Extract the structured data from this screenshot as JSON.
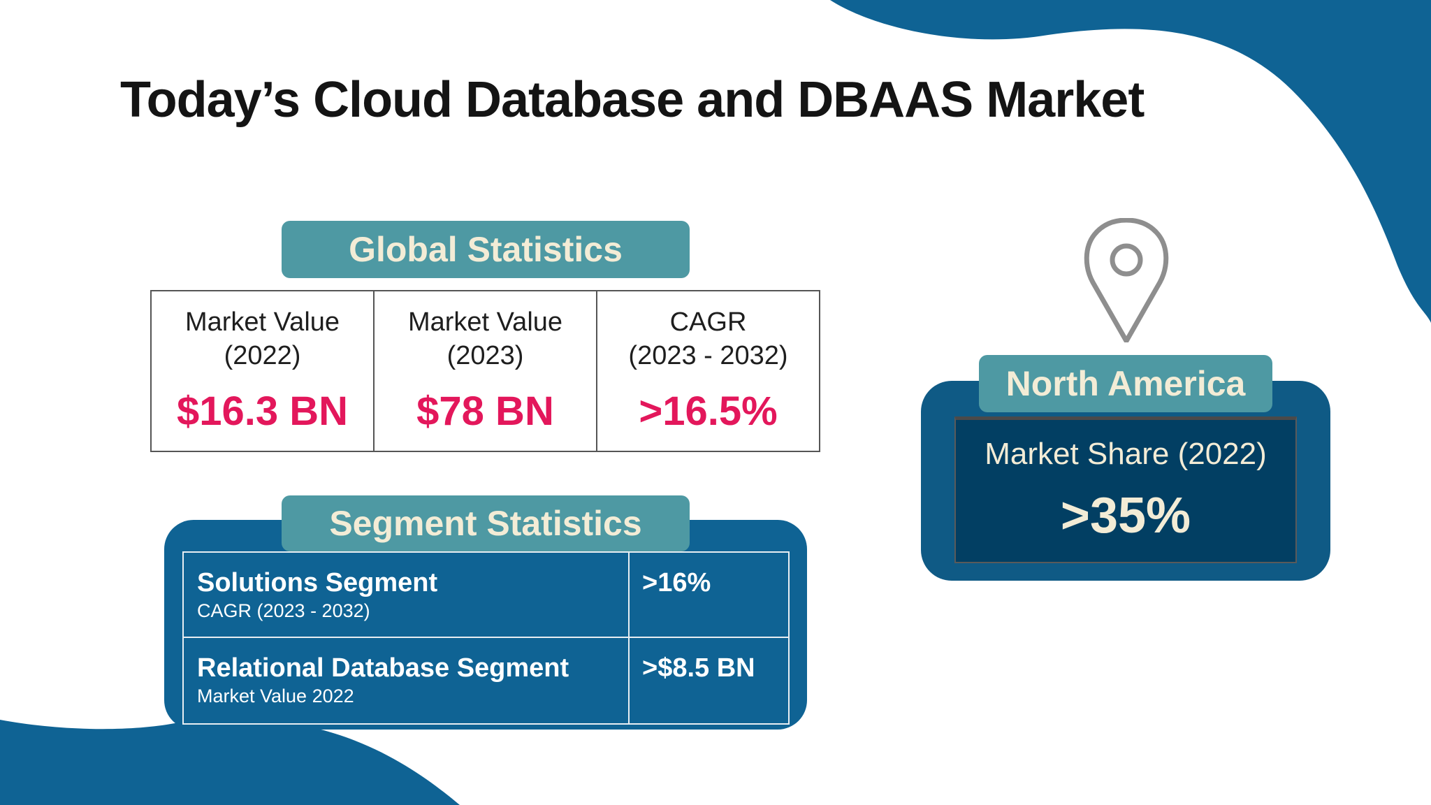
{
  "title": "Today’s Cloud Database and DBAAS Market",
  "colors": {
    "accent_blue": "#0f6394",
    "teal_pill": "#4e99a3",
    "value_pink": "#e3175b",
    "cream_text": "#f3ecd6"
  },
  "global": {
    "heading": "Global Statistics",
    "cells": [
      {
        "label_line1": "Market Value",
        "label_line2": "(2022)",
        "value": "$16.3 BN"
      },
      {
        "label_line1": "Market Value",
        "label_line2": "(2023)",
        "value": "$78 BN"
      },
      {
        "label_line1": "CAGR",
        "label_line2": "(2023 - 2032)",
        "value": ">16.5%"
      }
    ]
  },
  "segment": {
    "heading": "Segment Statistics",
    "rows": [
      {
        "name": "Solutions Segment",
        "sub": "CAGR (2023 - 2032)",
        "value": ">16%"
      },
      {
        "name": "Relational Database Segment",
        "sub": "Market Value 2022",
        "value": ">$8.5 BN"
      }
    ]
  },
  "region": {
    "icon": "location-pin-icon",
    "name": "North America",
    "label": "Market Share (2022)",
    "value": ">35%"
  }
}
